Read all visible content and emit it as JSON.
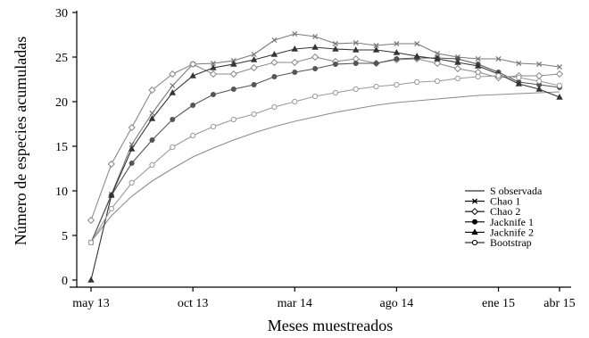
{
  "chart_data": {
    "type": "line",
    "xlabel": "Meses muestreados",
    "ylabel": "Número de especies acumuladas",
    "xlim": [
      1,
      24
    ],
    "ylim": [
      0,
      30
    ],
    "x_ticks": [
      {
        "x": 1,
        "label": "may 13"
      },
      {
        "x": 6,
        "label": "oct 13"
      },
      {
        "x": 11,
        "label": "mar 14"
      },
      {
        "x": 16,
        "label": "ago 14"
      },
      {
        "x": 21,
        "label": "ene 15"
      },
      {
        "x": 24,
        "label": "abr 15"
      }
    ],
    "y_ticks": [
      0,
      5,
      10,
      15,
      20,
      25,
      30
    ],
    "grid": false,
    "legend_position": "right",
    "x": [
      1,
      2,
      3,
      4,
      5,
      6,
      7,
      8,
      9,
      10,
      11,
      12,
      13,
      14,
      15,
      16,
      17,
      18,
      19,
      20,
      21,
      22,
      23,
      24
    ],
    "series": [
      {
        "name": "S observada",
        "marker": "none",
        "color": "#8c8c8c",
        "values": [
          4.3,
          7.2,
          9.4,
          11.1,
          12.5,
          13.8,
          14.8,
          15.7,
          16.5,
          17.2,
          17.8,
          18.3,
          18.8,
          19.2,
          19.6,
          19.9,
          20.1,
          20.3,
          20.5,
          20.7,
          20.8,
          20.9,
          21.0,
          21.1
        ]
      },
      {
        "name": "Chao 1",
        "marker": "cross",
        "color": "#7a7a7a",
        "values": [
          4.2,
          9.6,
          15.2,
          18.7,
          21.8,
          24.2,
          24.3,
          24.6,
          25.3,
          26.9,
          27.6,
          27.3,
          26.5,
          26.6,
          26.3,
          26.5,
          26.5,
          25.4,
          25.0,
          24.8,
          24.8,
          24.3,
          24.2,
          23.9
        ]
      },
      {
        "name": "Chao 2",
        "marker": "diamond",
        "color": "#8a8a8a",
        "values": [
          6.7,
          13.0,
          17.1,
          21.3,
          23.1,
          24.2,
          23.1,
          23.1,
          23.8,
          24.4,
          24.4,
          25.0,
          24.5,
          24.8,
          24.3,
          24.7,
          24.8,
          24.3,
          23.7,
          23.3,
          22.7,
          22.9,
          22.9,
          23.1
        ]
      },
      {
        "name": "Jacknife 1",
        "marker": "circle",
        "color": "#555555",
        "values": [
          4.2,
          9.5,
          13.1,
          15.7,
          18.0,
          19.6,
          20.8,
          21.4,
          21.9,
          22.8,
          23.3,
          23.7,
          24.2,
          24.3,
          24.3,
          24.8,
          24.9,
          24.9,
          24.8,
          24.2,
          23.3,
          22.2,
          21.9,
          21.6
        ]
      },
      {
        "name": "Jacknife 2",
        "marker": "triangle",
        "color": "#333333",
        "values": [
          0.0,
          9.5,
          14.7,
          18.1,
          21.0,
          22.9,
          23.8,
          24.2,
          24.7,
          25.3,
          25.9,
          26.1,
          25.9,
          25.8,
          25.8,
          25.5,
          25.1,
          24.8,
          24.4,
          24.0,
          23.1,
          22.0,
          21.4,
          20.5
        ]
      },
      {
        "name": "Bootstrap",
        "marker": "open-circle",
        "color": "#9a9a9a",
        "values": [
          4.2,
          8.0,
          10.9,
          12.9,
          14.9,
          16.2,
          17.2,
          18.0,
          18.6,
          19.4,
          20.0,
          20.6,
          21.0,
          21.4,
          21.7,
          21.9,
          22.2,
          22.3,
          22.6,
          22.8,
          22.9,
          22.7,
          22.3,
          21.8
        ]
      }
    ]
  }
}
